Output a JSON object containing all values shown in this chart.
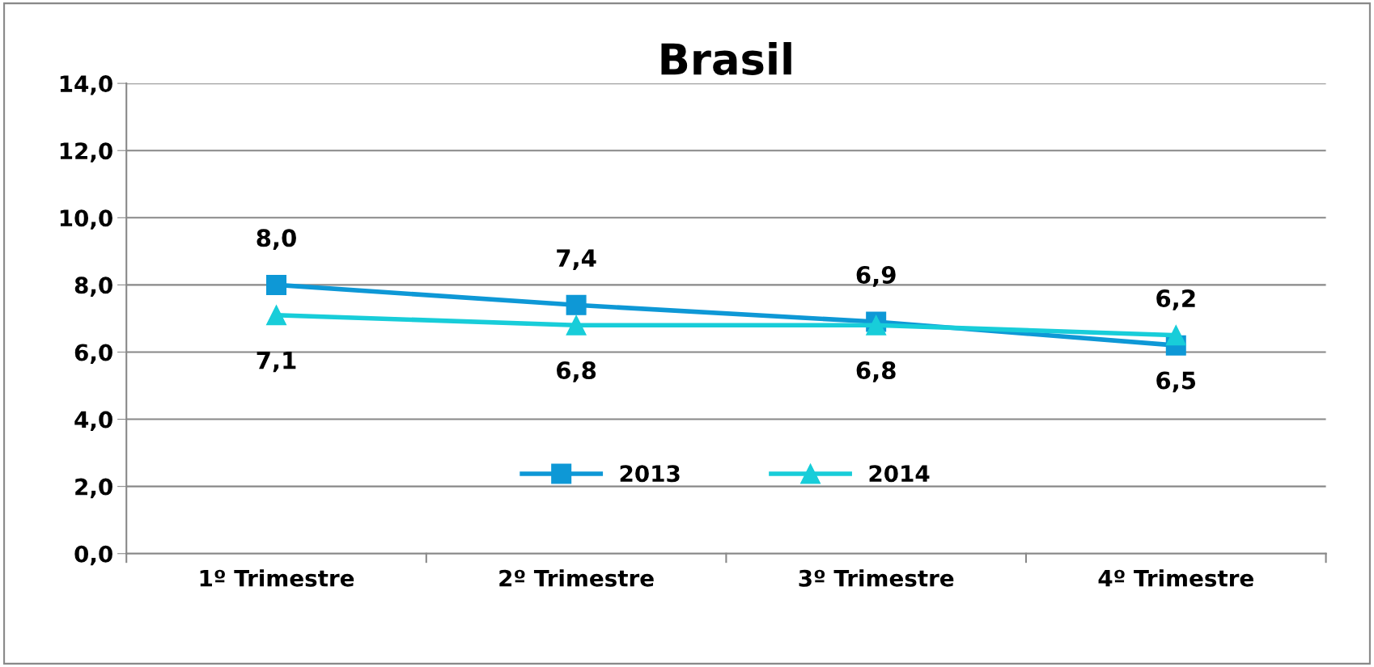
{
  "chart_data": {
    "type": "line",
    "title": "Brasil",
    "categories": [
      "1º Trimestre",
      "2º Trimestre",
      "3º Trimestre",
      "4º Trimestre"
    ],
    "series": [
      {
        "name": "2013",
        "color": "#0e98d6",
        "values": [
          8.0,
          7.4,
          6.9,
          6.2
        ],
        "marker": "square",
        "value_labels": [
          "8,0",
          "7,4",
          "6,9",
          "6,2"
        ]
      },
      {
        "name": "2014",
        "color": "#18cdd9",
        "values": [
          7.1,
          6.8,
          6.8,
          6.5
        ],
        "marker": "triangle",
        "value_labels": [
          "7,1",
          "6,8",
          "6,8",
          "6,5"
        ]
      }
    ],
    "ylim": [
      0,
      14
    ],
    "yticks": [
      {
        "value": 0,
        "label": "0,0"
      },
      {
        "value": 2,
        "label": "2,0"
      },
      {
        "value": 4,
        "label": "4,0"
      },
      {
        "value": 6,
        "label": "6,0"
      },
      {
        "value": 8,
        "label": "8,0"
      },
      {
        "value": 10,
        "label": "10,0"
      },
      {
        "value": 12,
        "label": "12,0"
      },
      {
        "value": 14,
        "label": "14,0"
      }
    ],
    "grid": "y",
    "legend": "bottom",
    "line_style": "solid"
  }
}
